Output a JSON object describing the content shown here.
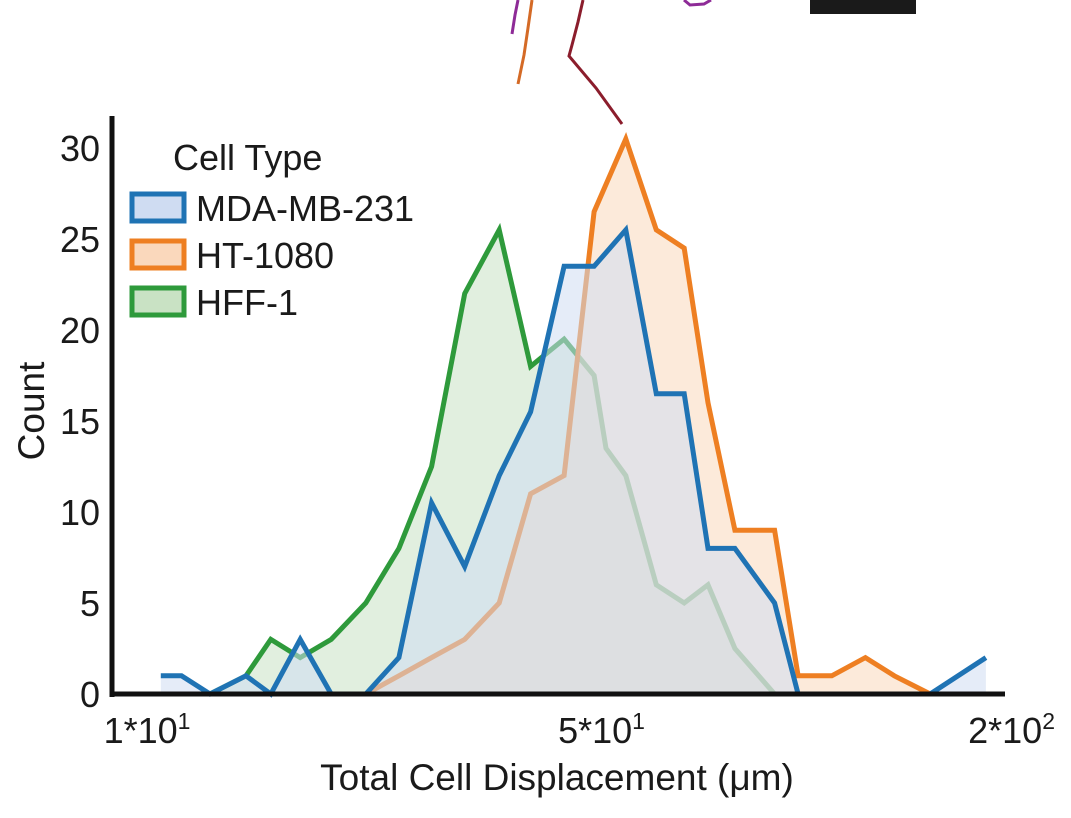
{
  "chart_data": {
    "type": "area",
    "xscale": "log",
    "xlabel": "Total Cell Displacement (μm)",
    "ylabel": "Count",
    "xlim": [
      10,
      200
    ],
    "ylim": [
      0,
      32
    ],
    "x_ticks": [
      {
        "value": 10,
        "base": "1*10",
        "exp": "1"
      },
      {
        "value": 50,
        "base": "5*10",
        "exp": "1"
      },
      {
        "value": 200,
        "base": "2*10",
        "exp": "2"
      }
    ],
    "y_ticks": [
      0,
      5,
      10,
      15,
      20,
      25,
      30
    ],
    "legend": {
      "title": "Cell Type",
      "position": "top-left"
    },
    "grid": false,
    "series": [
      {
        "name": "HFF-1",
        "color": "#2e9a3b",
        "fill": "#c9e2c4",
        "x": [
          12.5,
          14.2,
          15.5,
          17.2,
          19.2,
          21.7,
          24.4,
          27.4,
          30.8,
          34.8,
          38.9,
          43.8,
          48.7,
          50.8,
          54.5,
          60.7,
          67.0,
          72.9,
          80.2,
          92.3,
          100.3,
          113.0,
          127.3
        ],
        "y": [
          0,
          1,
          3,
          2,
          3,
          5,
          8,
          12.5,
          22,
          25.5,
          18,
          19.5,
          17.5,
          13.5,
          12,
          6,
          5,
          6,
          2.5,
          0,
          0,
          0,
          0
        ]
      },
      {
        "name": "HT-1080",
        "color": "#ee7f22",
        "fill": "#fad8bc",
        "x": [
          21.7,
          24.4,
          27.4,
          30.8,
          34.8,
          38.9,
          43.8,
          48.7,
          54.5,
          60.7,
          67.0,
          72.9,
          80.2,
          92.3,
          100.3,
          113.0,
          127.3,
          141.0,
          160.1
        ],
        "y": [
          0,
          1,
          2,
          3,
          5,
          11,
          12,
          26.5,
          30.5,
          25.5,
          24.5,
          16,
          9,
          9,
          1,
          1,
          2,
          1,
          0
        ]
      },
      {
        "name": "MDA-MB-231",
        "color": "#1f73b4",
        "fill": "#cfdcf2",
        "x": [
          10.5,
          11.3,
          12.5,
          14.2,
          15.5,
          17.2,
          19.2,
          21.7,
          24.4,
          27.4,
          30.8,
          34.8,
          38.9,
          43.8,
          48.7,
          54.5,
          60.7,
          67.0,
          72.9,
          80.2,
          92.3,
          100.3,
          113.0,
          127.3,
          141.0,
          160.1,
          195.0
        ],
        "y": [
          1,
          1,
          0,
          1,
          0,
          3,
          0,
          0,
          2,
          10.5,
          7,
          12,
          15.5,
          23.5,
          23.5,
          25.5,
          16.5,
          16.5,
          8,
          8,
          5,
          0,
          0,
          0,
          0,
          0,
          2
        ]
      }
    ]
  },
  "decor": {
    "trajectory_colors": [
      "#8e2b97",
      "#d46a26",
      "#8b1d2c"
    ],
    "scale_bar_color": "#1a1a1a"
  }
}
